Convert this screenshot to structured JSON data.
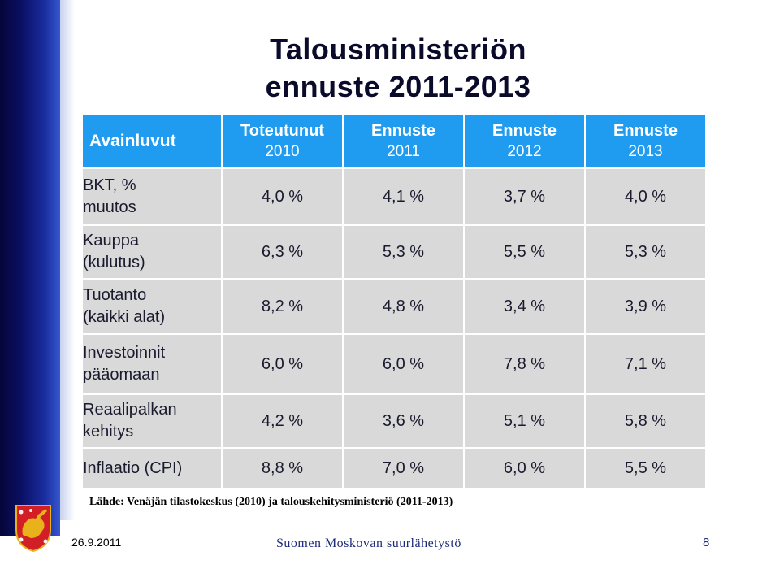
{
  "title": {
    "line1": "Talousministeriön",
    "line2": "ennuste 2011-2013"
  },
  "table": {
    "header": {
      "label": "Avainluvut",
      "columns": [
        {
          "name": "Toteutunut",
          "year": "2010"
        },
        {
          "name": "Ennuste",
          "year": "2011"
        },
        {
          "name": "Ennuste",
          "year": "2012"
        },
        {
          "name": "Ennuste",
          "year": "2013"
        }
      ]
    },
    "rows": [
      {
        "label1": "BKT, %",
        "label2": "muutos",
        "values": [
          "4,0 %",
          "4,1 %",
          "3,7 %",
          "4,0 %"
        ]
      },
      {
        "label1": "Kauppa",
        "label2": "(kulutus)",
        "values": [
          "6,3 %",
          "5,3 %",
          "5,5 %",
          "5,3 %"
        ]
      },
      {
        "label1": "Tuotanto",
        "label2": "(kaikki alat)",
        "values": [
          "8,2 %",
          "4,8 %",
          "3,4 %",
          "3,9 %"
        ]
      },
      {
        "label1": "Investoinnit",
        "label2": "pääomaan",
        "values": [
          "6,0 %",
          "6,0 %",
          "7,8 %",
          "7,1 %"
        ]
      },
      {
        "label1": "Reaalipalkan",
        "label2": "kehitys",
        "values": [
          "4,2 %",
          "3,6 %",
          "5,1 %",
          "5,8 %"
        ]
      },
      {
        "label1": "Inflaatio (CPI)",
        "label2": "",
        "values": [
          "8,8 %",
          "7,0 %",
          "6,0 %",
          "5,5 %"
        ]
      }
    ]
  },
  "source": "Lähde: Venäjän tilastokeskus (2010) ja talouskehitysministeriö (2011-2013)",
  "footer": {
    "date": "26.9.2011",
    "organization": "Suomen Moskovan suurlähetystö",
    "page": "8"
  },
  "colors": {
    "header_bg": "#1f9bf0",
    "cell_bg": "#d9d9d9",
    "band_dark": "#0a0f62",
    "crest_red": "#d21f26",
    "crest_gold": "#e8b21a"
  }
}
